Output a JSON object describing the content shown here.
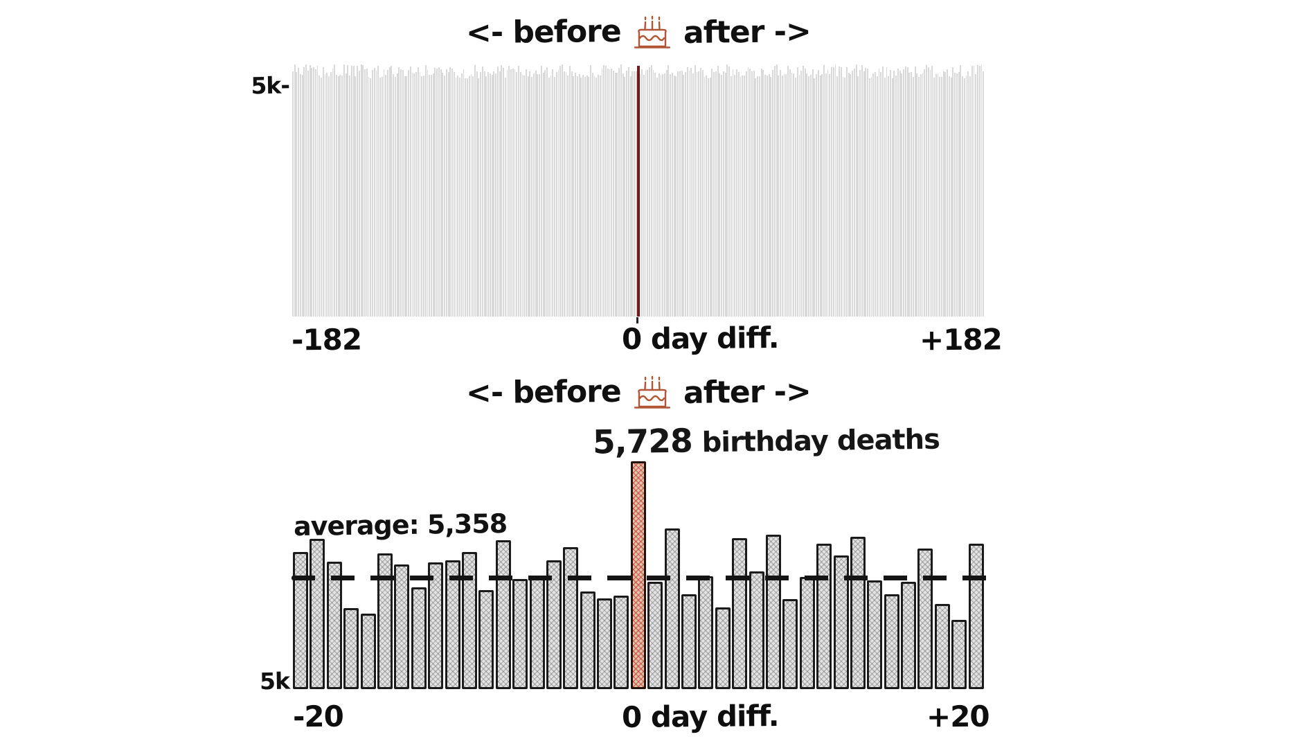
{
  "page": {
    "background": "#ffffff"
  },
  "colors": {
    "top_bar_gray": "#d9d9d9",
    "bottom_bar_gray": "#e4e4e4",
    "bar_border": "#1b1b1b",
    "zero_line_maroon": "#6e1d1d",
    "highlight_red_fill": "#ecc0b0",
    "highlight_red_hatch": "#b03e22",
    "annotation_red": "#c93a22",
    "cake_outline_orange": "#b05536",
    "text_black": "#161616"
  },
  "top_chart": {
    "title_left": "<- before",
    "title_right": "after ->",
    "y_tick": "5k-",
    "x_tick_left": "-182",
    "x_tick_center": "0 day diff.",
    "x_tick_right": "+182"
  },
  "bottom_chart": {
    "title_left": "<- before",
    "title_right": "after ->",
    "annotation_value": "5,728",
    "annotation_label": "birthday deaths",
    "average_label": "average: 5,358",
    "y_tick": "5k",
    "x_tick_left": "-20",
    "x_tick_center": "0 day diff.",
    "x_tick_right": "+20"
  },
  "chart_data": [
    {
      "type": "bar",
      "title": "<- before [birthday cake] after ->",
      "xlabel": "day diff.",
      "x_range": [
        -182,
        182
      ],
      "bins": 365,
      "y_tick": {
        "label": "5k",
        "value": 5000
      },
      "ylim": [
        0,
        5560
      ],
      "approx_value_range": [
        5180,
        5480
      ],
      "note": "365 near-uniform noisy gray bars of daily death counts; individual bar values not legible in source",
      "highlight": {
        "x": 0,
        "style": "dark maroon vertical line at day 0"
      },
      "grid": false,
      "legend": false
    },
    {
      "type": "bar",
      "title": "<- before [birthday cake] after ->",
      "xlabel": "day diff.",
      "categories": [
        -20,
        -19,
        -18,
        -17,
        -16,
        -15,
        -14,
        -13,
        -12,
        -11,
        -10,
        -9,
        -8,
        -7,
        -6,
        -5,
        -4,
        -3,
        -2,
        -1,
        0,
        1,
        2,
        3,
        4,
        5,
        6,
        7,
        8,
        9,
        10,
        11,
        12,
        13,
        14,
        15,
        16,
        17,
        18,
        19,
        20
      ],
      "values": [
        5438,
        5480,
        5407,
        5259,
        5241,
        5434,
        5398,
        5325,
        5405,
        5411,
        5438,
        5316,
        5476,
        5352,
        5354,
        5411,
        5454,
        5312,
        5290,
        5299,
        5728,
        5343,
        5513,
        5303,
        5361,
        5261,
        5482,
        5376,
        5493,
        5288,
        5358,
        5464,
        5427,
        5487,
        5347,
        5303,
        5343,
        5449,
        5272,
        5221,
        5464
      ],
      "highlight_index": 20,
      "highlight_value": 5728,
      "average": 5358,
      "y_axis_start": 5000,
      "y_tick": {
        "label": "5k",
        "value": 5000
      },
      "grid": false,
      "legend": false
    }
  ]
}
